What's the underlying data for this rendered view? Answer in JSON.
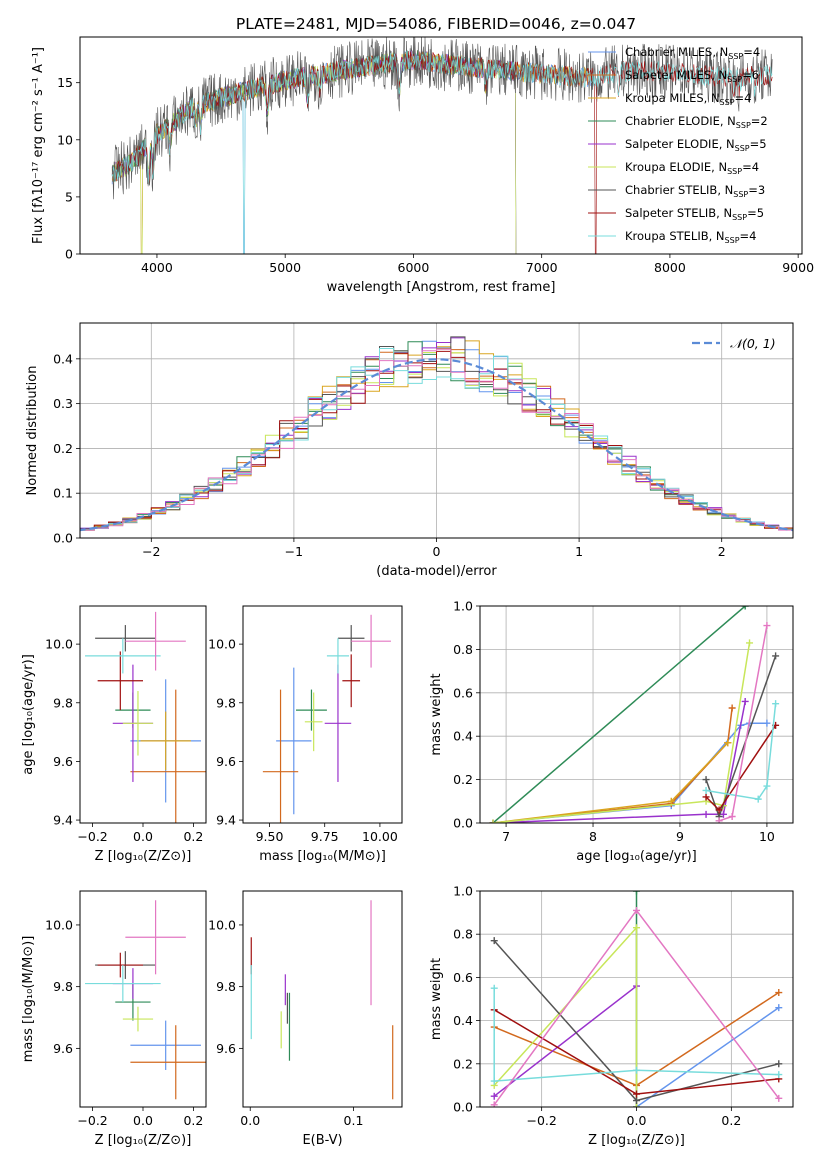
{
  "figure_title": "PLATE=2481, MJD=54086, FIBERID=0046, z=0.047",
  "colors": [
    "#6495ed",
    "#d2691e",
    "#daa520",
    "#2e8b57",
    "#9932cc",
    "#c8e65a",
    "#555555",
    "#a01010",
    "#78dcdc",
    "#e377c2"
  ],
  "chart_data": [
    {
      "type": "line",
      "id": "spectrum",
      "xlabel": "wavelength [Angstrom, rest frame]",
      "ylabel": "Flux [fλ10⁻¹⁷ erg cm⁻² s⁻¹ A⁻¹]",
      "xlim": [
        3400,
        9030
      ],
      "ylim": [
        0,
        19
      ],
      "xticks": [
        4000,
        5000,
        6000,
        7000,
        8000,
        9000
      ],
      "yticks": [
        0,
        5,
        10,
        15
      ],
      "legend_position": "right",
      "series": [
        {
          "name": "Chabrier MILES, N_SSP=4",
          "color": "#6495ed",
          "x_range": [
            3650,
            7400
          ]
        },
        {
          "name": "Salpeter MILES, N_SSP=6",
          "color": "#d2691e",
          "x_range": [
            3650,
            7400
          ]
        },
        {
          "name": "Kroupa MILES, N_SSP=4",
          "color": "#daa520",
          "x_range": [
            3650,
            7400
          ]
        },
        {
          "name": "Chabrier ELODIE, N_SSP=2",
          "color": "#2e8b57",
          "x_range": [
            3650,
            6800
          ]
        },
        {
          "name": "Salpeter ELODIE, N_SSP=5",
          "color": "#9932cc",
          "x_range": [
            3650,
            6800
          ]
        },
        {
          "name": "Kroupa ELODIE, N_SSP=4",
          "color": "#c8e65a",
          "x_range": [
            3650,
            6800
          ]
        },
        {
          "name": "Chabrier STELIB, N_SSP=3",
          "color": "#555555",
          "x_range": [
            3650,
            8800
          ]
        },
        {
          "name": "Salpeter STELIB, N_SSP=5",
          "color": "#a01010",
          "x_range": [
            3650,
            8800
          ]
        },
        {
          "name": "Kroupa STELIB, N_SSP=4",
          "color": "#78dcdc",
          "x_range": [
            3650,
            8800
          ]
        }
      ],
      "continuum": {
        "x": [
          3650,
          3800,
          4000,
          4300,
          4600,
          5000,
          5500,
          6000,
          6500,
          7000,
          7400,
          7600,
          8000,
          8400,
          8800
        ],
        "y": [
          7,
          8,
          10.5,
          13,
          14,
          15.2,
          16.2,
          17,
          16.3,
          15.8,
          15.4,
          16,
          16,
          15.5,
          15.7
        ]
      }
    },
    {
      "type": "step",
      "id": "residuals",
      "xlabel": "(data-model)/error",
      "ylabel": "Normed distribution",
      "xlim": [
        -2.5,
        2.5
      ],
      "ylim": [
        0,
        0.48
      ],
      "xticks": [
        -2,
        -1,
        0,
        1,
        2
      ],
      "yticks": [
        0.0,
        0.1,
        0.2,
        0.3,
        0.4
      ],
      "grid": true,
      "bin_width": 0.1,
      "legend": {
        "label": "𝒩(0, 1)",
        "position": "top-right"
      },
      "reference_curve": "gaussian mean 0 sigma 1 (dashed)"
    },
    {
      "type": "errorbar",
      "id": "age-vs-Z",
      "xlabel": "Z [log₁₀(Z/Z⊙)]",
      "ylabel": "age  [log₁₀(age/yr)]",
      "xlim": [
        -0.25,
        0.25
      ],
      "ylim": [
        9.39,
        10.13
      ],
      "xticks": [
        -0.2,
        0.0,
        0.2
      ],
      "yticks": [
        9.4,
        9.6,
        9.8,
        10.0
      ],
      "points": [
        {
          "x": 0.09,
          "xerr": 0.14,
          "y": 9.67,
          "yerr": 0.21,
          "color": "#6495ed"
        },
        {
          "x": 0.13,
          "xerr": 0.18,
          "y": 9.565,
          "yerr": 0.28,
          "color": "#d2691e"
        },
        {
          "x": 0.09,
          "xerr": 0.1,
          "y": 9.67,
          "yerr": 0.1,
          "color": "#daa520"
        },
        {
          "x": -0.04,
          "xerr": 0.07,
          "y": 9.775,
          "yerr": 0.06,
          "color": "#2e8b57"
        },
        {
          "x": -0.04,
          "xerr": 0.08,
          "y": 9.73,
          "yerr": 0.2,
          "color": "#9932cc"
        },
        {
          "x": -0.02,
          "xerr": 0.06,
          "y": 9.73,
          "yerr": 0.11,
          "color": "#c8e65a"
        },
        {
          "x": -0.07,
          "xerr": 0.12,
          "y": 10.02,
          "yerr": 0.045,
          "color": "#555555"
        },
        {
          "x": -0.09,
          "xerr": 0.09,
          "y": 9.875,
          "yerr": 0.1,
          "color": "#a01010"
        },
        {
          "x": -0.08,
          "xerr": 0.15,
          "y": 9.96,
          "yerr": 0.06,
          "color": "#78dcdc"
        },
        {
          "x": 0.05,
          "xerr": 0.12,
          "y": 10.01,
          "yerr": 0.1,
          "color": "#e377c2"
        }
      ]
    },
    {
      "type": "errorbar",
      "id": "age-vs-mass",
      "xlabel": "mass [log₁₀(M/M⊙)]",
      "xlim": [
        9.38,
        10.1
      ],
      "ylim": [
        9.39,
        10.13
      ],
      "xticks": [
        9.5,
        9.75,
        10.0
      ],
      "tick_labels": [
        "9.50",
        "9.75",
        "10.00"
      ],
      "yticks": [
        9.4,
        9.6,
        9.8,
        10.0
      ],
      "points": [
        {
          "x": 9.61,
          "xerr": 0.08,
          "y": 9.67,
          "yerr": 0.25,
          "color": "#6495ed"
        },
        {
          "x": 9.55,
          "xerr": 0.08,
          "y": 9.565,
          "yerr": 0.28,
          "color": "#d2691e"
        },
        {
          "x": 9.69,
          "xerr": 0.07,
          "y": 9.775,
          "yerr": 0.07,
          "color": "#2e8b57"
        },
        {
          "x": 9.81,
          "xerr": 0.06,
          "y": 9.73,
          "yerr": 0.2,
          "color": "#9932cc"
        },
        {
          "x": 9.7,
          "xerr": 0.04,
          "y": 9.735,
          "yerr": 0.1,
          "color": "#c8e65a"
        },
        {
          "x": 9.87,
          "xerr": 0.06,
          "y": 10.02,
          "yerr": 0.045,
          "color": "#555555"
        },
        {
          "x": 9.87,
          "xerr": 0.04,
          "y": 9.875,
          "yerr": 0.09,
          "color": "#a01010"
        },
        {
          "x": 9.81,
          "xerr": 0.05,
          "y": 9.96,
          "yerr": 0.06,
          "color": "#78dcdc"
        },
        {
          "x": 9.96,
          "xerr": 0.09,
          "y": 10.01,
          "yerr": 0.09,
          "color": "#e377c2"
        }
      ]
    },
    {
      "type": "line",
      "id": "mass-weight-vs-age",
      "xlabel": "age  [log₁₀(age/yr)]",
      "ylabel": "mass weight",
      "xlim": [
        6.7,
        10.3
      ],
      "ylim": [
        0,
        1
      ],
      "xticks": [
        7,
        8,
        9,
        10
      ],
      "yticks": [
        0.0,
        0.2,
        0.4,
        0.6,
        0.8,
        1.0
      ],
      "grid": true,
      "series": [
        {
          "color": "#2e8b57",
          "x": [
            6.85,
            9.75
          ],
          "y": [
            0.0,
            1.0
          ]
        },
        {
          "color": "#6495ed",
          "x": [
            6.85,
            8.9,
            9.7,
            9.8,
            10.0
          ],
          "y": [
            0.0,
            0.08,
            0.45,
            0.46,
            0.46
          ]
        },
        {
          "color": "#d2691e",
          "x": [
            6.85,
            8.9,
            9.55,
            9.6
          ],
          "y": [
            0.0,
            0.09,
            0.37,
            0.53
          ]
        },
        {
          "color": "#daa520",
          "x": [
            6.85,
            8.9,
            9.55
          ],
          "y": [
            0.0,
            0.1,
            0.37
          ]
        },
        {
          "color": "#9932cc",
          "x": [
            6.85,
            9.3,
            9.5,
            9.75
          ],
          "y": [
            0.0,
            0.04,
            0.04,
            0.56
          ]
        },
        {
          "color": "#c8e65a",
          "x": [
            6.85,
            9.3,
            9.5,
            9.8
          ],
          "y": [
            0.0,
            0.1,
            0.08,
            0.83
          ]
        },
        {
          "color": "#555555",
          "x": [
            9.3,
            9.45,
            10.1
          ],
          "y": [
            0.2,
            0.03,
            0.77
          ]
        },
        {
          "color": "#a01010",
          "x": [
            9.3,
            9.45,
            10.1
          ],
          "y": [
            0.12,
            0.06,
            0.45
          ]
        },
        {
          "color": "#78dcdc",
          "x": [
            9.3,
            9.9,
            10.0,
            10.1
          ],
          "y": [
            0.15,
            0.11,
            0.17,
            0.55
          ]
        },
        {
          "color": "#e377c2",
          "x": [
            9.45,
            9.6,
            10.0
          ],
          "y": [
            0.01,
            0.03,
            0.91
          ]
        }
      ]
    },
    {
      "type": "errorbar",
      "id": "mass-vs-Z",
      "xlabel": "Z [log₁₀(Z/Z⊙)]",
      "ylabel": "mass [log₁₀(M/M⊙)]",
      "xlim": [
        -0.25,
        0.25
      ],
      "ylim": [
        9.41,
        10.11
      ],
      "xticks": [
        -0.2,
        0.0,
        0.2
      ],
      "yticks": [
        9.6,
        9.8,
        10.0
      ],
      "points": [
        {
          "x": 0.09,
          "xerr": 0.14,
          "y": 9.61,
          "yerr": 0.08,
          "color": "#6495ed"
        },
        {
          "x": 0.13,
          "xerr": 0.18,
          "y": 9.555,
          "yerr": 0.12,
          "color": "#d2691e"
        },
        {
          "x": -0.04,
          "xerr": 0.07,
          "y": 9.75,
          "yerr": 0.06,
          "color": "#2e8b57"
        },
        {
          "x": -0.04,
          "xerr": 0.08,
          "y": 9.81,
          "yerr": 0.05,
          "color": "#9932cc"
        },
        {
          "x": -0.02,
          "xerr": 0.06,
          "y": 9.695,
          "yerr": 0.04,
          "color": "#c8e65a"
        },
        {
          "x": -0.07,
          "xerr": 0.12,
          "y": 9.87,
          "yerr": 0.045,
          "color": "#555555"
        },
        {
          "x": -0.09,
          "xerr": 0.09,
          "y": 9.87,
          "yerr": 0.04,
          "color": "#a01010"
        },
        {
          "x": -0.08,
          "xerr": 0.15,
          "y": 9.81,
          "yerr": 0.06,
          "color": "#78dcdc"
        },
        {
          "x": 0.05,
          "xerr": 0.12,
          "y": 9.96,
          "yerr": 0.12,
          "color": "#e377c2"
        }
      ]
    },
    {
      "type": "errorbar",
      "id": "mass-vs-ebv",
      "xlabel": "E(B-V)",
      "xlim": [
        -0.007,
        0.147
      ],
      "ylim": [
        9.41,
        10.11
      ],
      "xticks": [
        0.0,
        0.1
      ],
      "yticks": [
        9.6,
        9.8,
        10.0
      ],
      "points": [
        {
          "x": 0.138,
          "xerr": 0,
          "y": 9.555,
          "yerr": 0.12,
          "color": "#d2691e"
        },
        {
          "x": 0.038,
          "xerr": 0,
          "y": 9.67,
          "yerr": 0.11,
          "color": "#2e8b57"
        },
        {
          "x": 0.034,
          "xerr": 0,
          "y": 9.79,
          "yerr": 0.05,
          "color": "#9932cc"
        },
        {
          "x": 0.03,
          "xerr": 0,
          "y": 9.66,
          "yerr": 0.06,
          "color": "#c8e65a"
        },
        {
          "x": 0.036,
          "xerr": 0,
          "y": 9.73,
          "yerr": 0.05,
          "color": "#555555"
        },
        {
          "x": 0.001,
          "xerr": 0,
          "y": 9.9,
          "yerr": 0.06,
          "color": "#a01010"
        },
        {
          "x": 0.001,
          "xerr": 0,
          "y": 9.75,
          "yerr": 0.12,
          "color": "#78dcdc"
        },
        {
          "x": 0.117,
          "xerr": 0,
          "y": 9.91,
          "yerr": 0.17,
          "color": "#e377c2"
        }
      ]
    },
    {
      "type": "line",
      "id": "mass-weight-vs-Z",
      "xlabel": "Z [log₁₀(Z/Z⊙)]",
      "ylabel": "mass weight",
      "xlim": [
        -0.33,
        0.33
      ],
      "ylim": [
        0,
        1
      ],
      "xticks": [
        -0.2,
        0.0,
        0.2
      ],
      "yticks": [
        0.0,
        0.2,
        0.4,
        0.6,
        0.8,
        1.0
      ],
      "grid": true,
      "series": [
        {
          "color": "#2e8b57",
          "x": [
            0.0,
            0.0
          ],
          "y": [
            0.0,
            1.0
          ]
        },
        {
          "color": "#6495ed",
          "x": [
            0.0,
            0.3
          ],
          "y": [
            0.0,
            0.46
          ]
        },
        {
          "color": "#d2691e",
          "x": [
            -0.3,
            0.0,
            0.3
          ],
          "y": [
            0.37,
            0.1,
            0.53
          ]
        },
        {
          "color": "#9932cc",
          "x": [
            -0.3,
            0.0
          ],
          "y": [
            0.05,
            0.56
          ]
        },
        {
          "color": "#c8e65a",
          "x": [
            -0.3,
            0.0,
            0.0
          ],
          "y": [
            0.1,
            0.83,
            0.0
          ]
        },
        {
          "color": "#555555",
          "x": [
            -0.3,
            0.0,
            0.3
          ],
          "y": [
            0.77,
            0.03,
            0.2
          ]
        },
        {
          "color": "#a01010",
          "x": [
            -0.3,
            0.0,
            0.3
          ],
          "y": [
            0.45,
            0.06,
            0.13
          ]
        },
        {
          "color": "#78dcdc",
          "x": [
            -0.3,
            -0.3,
            0.0,
            0.3
          ],
          "y": [
            0.55,
            0.12,
            0.17,
            0.15
          ]
        },
        {
          "color": "#e377c2",
          "x": [
            -0.3,
            0.0,
            0.3
          ],
          "y": [
            0.01,
            0.91,
            0.04
          ]
        }
      ]
    }
  ]
}
